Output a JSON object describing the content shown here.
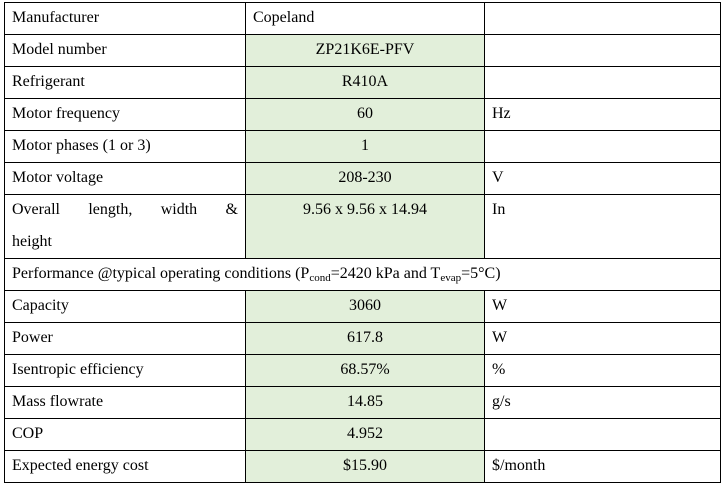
{
  "table": {
    "manufacturer": {
      "label": "Manufacturer",
      "value": "Copeland",
      "unit": ""
    },
    "rows_top": [
      {
        "label": "Model number",
        "value": "ZP21K6E-PFV",
        "unit": ""
      },
      {
        "label": "Refrigerant",
        "value": "R410A",
        "unit": ""
      },
      {
        "label": "Motor frequency",
        "value": "60",
        "unit": "Hz"
      },
      {
        "label": "Motor phases (1 or 3)",
        "value": "1",
        "unit": ""
      },
      {
        "label": "Motor voltage",
        "value": "208-230",
        "unit": "V"
      }
    ],
    "dimensions": {
      "label_words": [
        "Overall",
        "length,",
        "width",
        "&"
      ],
      "label_line2": "height",
      "value": "9.56 x 9.56 x 14.94",
      "unit": "In"
    },
    "performance": {
      "prefix": "Performance @typical operating conditions (P",
      "sub1": "cond",
      "mid": "=2420 kPa and T",
      "sub2": "evap",
      "suffix": "=5°C)"
    },
    "rows_bottom": [
      {
        "label": "Capacity",
        "value": "3060",
        "unit": "W"
      },
      {
        "label": "Power",
        "value": "617.8",
        "unit": "W"
      },
      {
        "label": "Isentropic efficiency",
        "value": "68.57%",
        "unit": "%"
      },
      {
        "label": "Mass flowrate",
        "value": "14.85",
        "unit": "g/s"
      },
      {
        "label": "COP",
        "value": "4.952",
        "unit": ""
      },
      {
        "label": "Expected energy cost",
        "value": "$15.90",
        "unit": "$/month"
      }
    ]
  }
}
